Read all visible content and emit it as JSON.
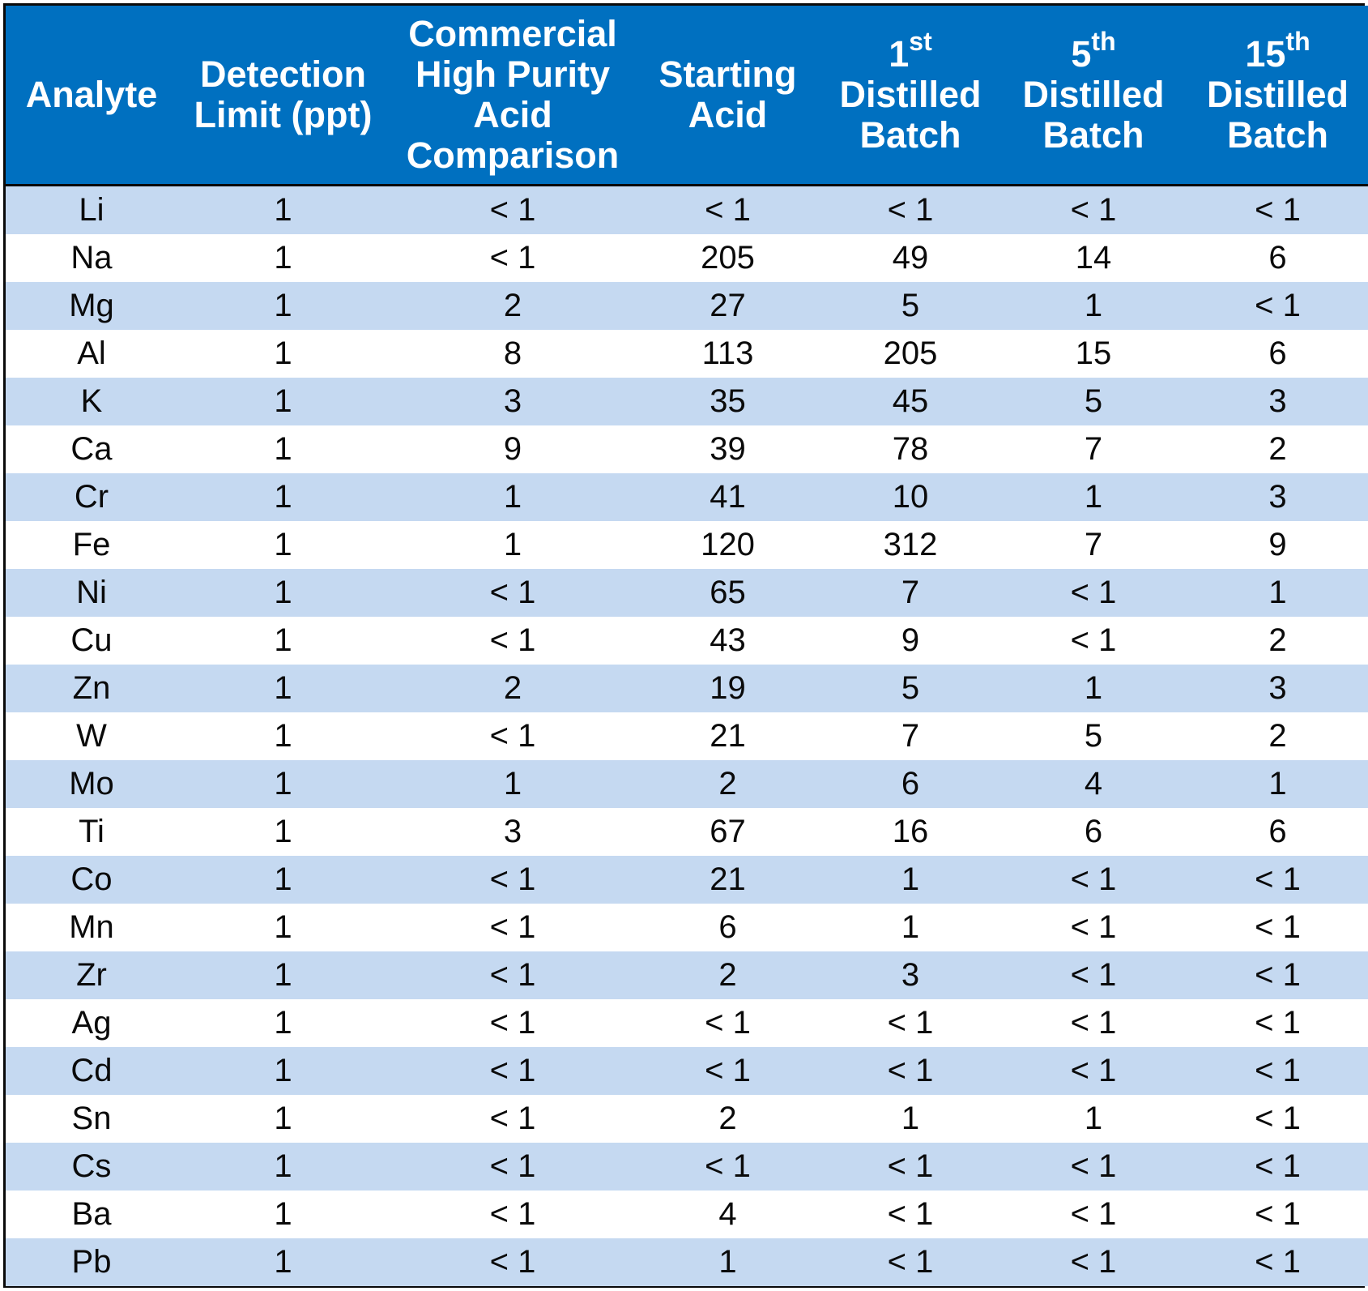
{
  "table": {
    "headers": [
      {
        "lines": [
          {
            "text": "Analyte"
          }
        ]
      },
      {
        "lines": [
          {
            "text": "Detection"
          },
          {
            "text": "Limit (ppt)"
          }
        ]
      },
      {
        "lines": [
          {
            "text": "Commercial"
          },
          {
            "text": "High Purity"
          },
          {
            "text": "Acid"
          },
          {
            "text": "Comparison"
          }
        ]
      },
      {
        "lines": [
          {
            "text": "Starting"
          },
          {
            "text": "Acid"
          }
        ]
      },
      {
        "lines": [
          {
            "text": "1",
            "sup": "st"
          },
          {
            "text": "Distilled"
          },
          {
            "text": "Batch"
          }
        ]
      },
      {
        "lines": [
          {
            "text": "5",
            "sup": "th"
          },
          {
            "text": "Distilled"
          },
          {
            "text": "Batch"
          }
        ]
      },
      {
        "lines": [
          {
            "text": "15",
            "sup": "th"
          },
          {
            "text": "Distilled"
          },
          {
            "text": "Batch"
          }
        ]
      }
    ],
    "rows": [
      [
        "Li",
        "1",
        "< 1",
        "< 1",
        "< 1",
        "< 1",
        "< 1"
      ],
      [
        "Na",
        "1",
        "< 1",
        "205",
        "49",
        "14",
        "6"
      ],
      [
        "Mg",
        "1",
        "2",
        "27",
        "5",
        "1",
        "< 1"
      ],
      [
        "Al",
        "1",
        "8",
        "113",
        "205",
        "15",
        "6"
      ],
      [
        "K",
        "1",
        "3",
        "35",
        "45",
        "5",
        "3"
      ],
      [
        "Ca",
        "1",
        "9",
        "39",
        "78",
        "7",
        "2"
      ],
      [
        "Cr",
        "1",
        "1",
        "41",
        "10",
        "1",
        "3"
      ],
      [
        "Fe",
        "1",
        "1",
        "120",
        "312",
        "7",
        "9"
      ],
      [
        "Ni",
        "1",
        "< 1",
        "65",
        "7",
        "< 1",
        "1"
      ],
      [
        "Cu",
        "1",
        "< 1",
        "43",
        "9",
        "< 1",
        "2"
      ],
      [
        "Zn",
        "1",
        "2",
        "19",
        "5",
        "1",
        "3"
      ],
      [
        "W",
        "1",
        "< 1",
        "21",
        "7",
        "5",
        "2"
      ],
      [
        "Mo",
        "1",
        "1",
        "2",
        "6",
        "4",
        "1"
      ],
      [
        "Ti",
        "1",
        "3",
        "67",
        "16",
        "6",
        "6"
      ],
      [
        "Co",
        "1",
        "< 1",
        "21",
        "1",
        "< 1",
        "< 1"
      ],
      [
        "Mn",
        "1",
        "< 1",
        "6",
        "1",
        "< 1",
        "< 1"
      ],
      [
        "Zr",
        "1",
        "< 1",
        "2",
        "3",
        "< 1",
        "< 1"
      ],
      [
        "Ag",
        "1",
        "< 1",
        "< 1",
        "< 1",
        "< 1",
        "< 1"
      ],
      [
        "Cd",
        "1",
        "< 1",
        "< 1",
        "< 1",
        "< 1",
        "< 1"
      ],
      [
        "Sn",
        "1",
        "< 1",
        "2",
        "1",
        "1",
        "< 1"
      ],
      [
        "Cs",
        "1",
        "< 1",
        "< 1",
        "< 1",
        "< 1",
        "< 1"
      ],
      [
        "Ba",
        "1",
        "< 1",
        "4",
        "< 1",
        "< 1",
        "< 1"
      ],
      [
        "Pb",
        "1",
        "< 1",
        "1",
        "< 1",
        "< 1",
        "< 1"
      ]
    ]
  },
  "colors": {
    "header_bg": "#0070c0",
    "header_text": "#ffffff",
    "row_band": "#c5d9f1",
    "row_plain": "#ffffff",
    "border": "#0a0a0a"
  }
}
